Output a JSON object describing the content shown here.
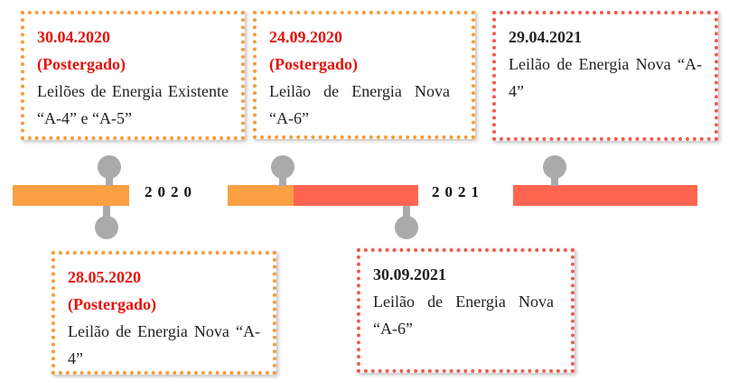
{
  "events": [
    {
      "date": "30.04.2020",
      "status": "(Postergado)",
      "description": "Leilões de Energia Existente “A-4” e “A-5”"
    },
    {
      "date": "24.09.2020",
      "status": "(Postergado)",
      "description": "Leilão de Energia Nova “A-6”"
    },
    {
      "date": "29.04.2021",
      "description": "Leilão de Energia Nova “A-4”"
    },
    {
      "date": "28.05.2020",
      "status": "(Postergado)",
      "description": "Leilão de Energia Nova “A-4”"
    },
    {
      "date": "30.09.2021",
      "description": "Leilão de Energia Nova “A-6”"
    }
  ],
  "years": [
    "2020",
    "2021"
  ]
}
